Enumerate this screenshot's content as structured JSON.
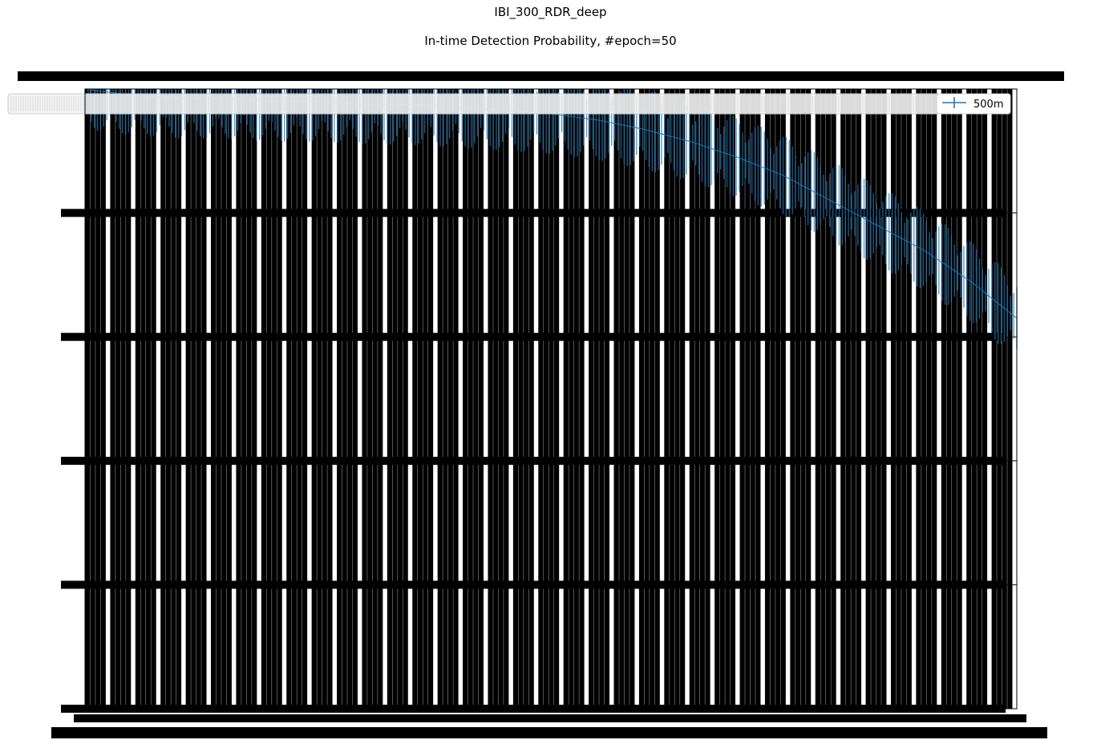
{
  "figure": {
    "suptitle": "IBI_300_RDR_deep",
    "title": "In-time Detection Probability, #epoch=50"
  },
  "legend": {
    "placement": "top-right",
    "entries": [
      {
        "name": "500m",
        "color": "#1f77b4"
      }
    ]
  },
  "colors": {
    "series": "#1f77b4",
    "ink": "#000000",
    "background": "#ffffff"
  },
  "chart_data": {
    "type": "line",
    "title": "In-time Detection Probability, #epoch=50",
    "xlabel": "",
    "ylabel": "",
    "grid": true,
    "xlim": [
      0,
      1
    ],
    "ylim": [
      0,
      1
    ],
    "n_points": 300,
    "yticks": [
      0,
      0.2,
      0.4,
      0.6,
      0.8,
      1.0
    ],
    "series": [
      {
        "name": "500m",
        "error_bars": true,
        "approx_curve": {
          "x": [
            0.0,
            0.05,
            0.1,
            0.15,
            0.2,
            0.25,
            0.3,
            0.35,
            0.4,
            0.45,
            0.5,
            0.55,
            0.6,
            0.65,
            0.7,
            0.75,
            0.8,
            0.85,
            0.9,
            0.95,
            1.0
          ],
          "y": [
            1.0,
            0.99,
            0.985,
            0.985,
            0.98,
            0.98,
            0.975,
            0.975,
            0.97,
            0.965,
            0.96,
            0.95,
            0.935,
            0.915,
            0.89,
            0.86,
            0.82,
            0.78,
            0.74,
            0.69,
            0.63
          ]
        }
      }
    ]
  }
}
